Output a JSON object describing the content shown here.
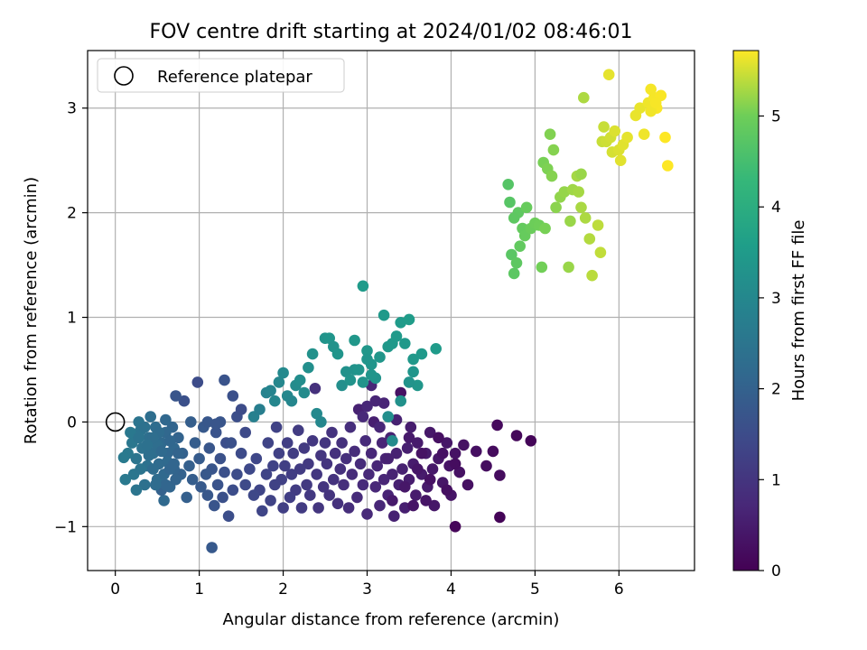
{
  "chart_data": {
    "type": "scatter",
    "title": "FOV centre drift starting at 2024/01/02 08:46:01",
    "xlabel": "Angular distance from reference (arcmin)",
    "ylabel": "Rotation from reference (arcmin)",
    "xlim": [
      -0.33,
      6.9
    ],
    "ylim": [
      -1.42,
      3.55
    ],
    "x_ticks": [
      0,
      1,
      2,
      3,
      4,
      5,
      6
    ],
    "y_ticks": [
      -1,
      0,
      1,
      2,
      3
    ],
    "x_tick_labels": [
      "0",
      "1",
      "2",
      "3",
      "4",
      "5",
      "6"
    ],
    "y_tick_labels": [
      "−1",
      "0",
      "1",
      "2",
      "3"
    ],
    "grid": true,
    "legend": {
      "placement": "top-left",
      "entries": [
        "Reference platepar"
      ]
    },
    "reference_point": {
      "x": 0,
      "y": 0
    },
    "colorbar": {
      "label": "Hours from first FF file",
      "colormap": "viridis",
      "range": [
        0,
        5.72
      ],
      "ticks": [
        0,
        1,
        2,
        3,
        4,
        5
      ],
      "tick_labels": [
        "0",
        "1",
        "2",
        "3",
        "4",
        "5"
      ]
    },
    "points": [
      [
        4.58,
        -0.91,
        0.05
      ],
      [
        4.05,
        -1.0,
        0.1
      ],
      [
        4.95,
        -0.18,
        0.08
      ],
      [
        4.78,
        -0.13,
        0.12
      ],
      [
        4.55,
        -0.03,
        0.15
      ],
      [
        4.58,
        -0.51,
        0.2
      ],
      [
        4.5,
        -0.28,
        0.18
      ],
      [
        4.42,
        -0.42,
        0.22
      ],
      [
        4.3,
        -0.28,
        0.25
      ],
      [
        4.2,
        -0.6,
        0.28
      ],
      [
        4.15,
        -0.22,
        0.3
      ],
      [
        4.1,
        -0.48,
        0.3
      ],
      [
        4.05,
        -0.3,
        0.32
      ],
      [
        4.0,
        -0.7,
        0.35
      ],
      [
        3.98,
        -0.42,
        0.35
      ],
      [
        3.95,
        -0.2,
        0.38
      ],
      [
        3.9,
        -0.58,
        0.38
      ],
      [
        3.85,
        -0.35,
        0.4
      ],
      [
        3.8,
        -0.8,
        0.4
      ],
      [
        3.78,
        -0.45,
        0.42
      ],
      [
        3.75,
        -0.1,
        0.42
      ],
      [
        3.72,
        -0.62,
        0.45
      ],
      [
        3.7,
        -0.3,
        0.45
      ],
      [
        3.65,
        -0.5,
        0.48
      ],
      [
        3.6,
        -0.2,
        0.48
      ],
      [
        3.58,
        -0.7,
        0.5
      ],
      [
        3.55,
        -0.4,
        0.5
      ],
      [
        3.52,
        -0.05,
        0.52
      ],
      [
        3.5,
        -0.55,
        0.52
      ],
      [
        3.48,
        -0.25,
        0.55
      ],
      [
        3.45,
        -0.82,
        0.55
      ],
      [
        3.42,
        -0.45,
        0.58
      ],
      [
        3.4,
        0.28,
        0.3
      ],
      [
        3.38,
        -0.6,
        0.58
      ],
      [
        3.35,
        -0.3,
        0.6
      ],
      [
        3.32,
        -0.9,
        0.6
      ],
      [
        3.3,
        -0.5,
        0.62
      ],
      [
        3.28,
        -0.15,
        0.62
      ],
      [
        3.25,
        -0.7,
        0.65
      ],
      [
        3.22,
        -0.35,
        0.65
      ],
      [
        3.2,
        -0.55,
        0.68
      ],
      [
        3.18,
        -0.2,
        0.68
      ],
      [
        3.15,
        -0.8,
        0.7
      ],
      [
        3.12,
        -0.42,
        0.7
      ],
      [
        3.1,
        -0.62,
        0.72
      ],
      [
        3.08,
        0.0,
        0.55
      ],
      [
        3.05,
        -0.3,
        0.72
      ],
      [
        3.02,
        -0.5,
        0.75
      ],
      [
        3.0,
        -0.88,
        0.75
      ],
      [
        2.98,
        -0.18,
        0.78
      ],
      [
        2.95,
        -0.6,
        0.78
      ],
      [
        2.92,
        -0.4,
        0.8
      ],
      [
        2.9,
        0.12,
        0.6
      ],
      [
        2.88,
        -0.72,
        0.8
      ],
      [
        2.85,
        -0.28,
        0.82
      ],
      [
        2.82,
        -0.5,
        0.82
      ],
      [
        2.8,
        -0.05,
        0.85
      ],
      [
        2.78,
        -0.82,
        0.85
      ],
      [
        2.75,
        -0.35,
        0.88
      ],
      [
        2.72,
        -0.6,
        0.88
      ],
      [
        2.7,
        -0.2,
        0.9
      ],
      [
        2.68,
        -0.45,
        0.9
      ],
      [
        2.65,
        -0.78,
        0.92
      ],
      [
        2.62,
        -0.3,
        0.92
      ],
      [
        2.6,
        -0.55,
        0.95
      ],
      [
        2.58,
        -0.1,
        0.95
      ],
      [
        2.55,
        -0.7,
        0.98
      ],
      [
        2.52,
        -0.4,
        0.98
      ],
      [
        2.5,
        -0.2,
        1.0
      ],
      [
        2.48,
        -0.62,
        1.0
      ],
      [
        2.45,
        -0.32,
        1.02
      ],
      [
        2.42,
        -0.82,
        1.02
      ],
      [
        2.4,
        -0.5,
        1.05
      ],
      [
        2.38,
        0.32,
        0.9
      ],
      [
        2.35,
        -0.18,
        1.05
      ],
      [
        2.32,
        -0.7,
        1.08
      ],
      [
        2.3,
        -0.4,
        1.08
      ],
      [
        2.28,
        -0.6,
        1.1
      ],
      [
        2.25,
        -0.25,
        1.1
      ],
      [
        2.22,
        -0.82,
        1.12
      ],
      [
        2.2,
        -0.45,
        1.12
      ],
      [
        2.18,
        -0.08,
        1.15
      ],
      [
        2.15,
        -0.65,
        1.15
      ],
      [
        2.12,
        -0.3,
        1.18
      ],
      [
        2.1,
        -0.5,
        1.18
      ],
      [
        2.08,
        -0.72,
        1.2
      ],
      [
        2.05,
        -0.2,
        1.2
      ],
      [
        2.02,
        -0.42,
        1.22
      ],
      [
        2.0,
        -0.82,
        1.22
      ],
      [
        1.98,
        -0.55,
        1.25
      ],
      [
        1.95,
        -0.3,
        1.25
      ],
      [
        1.92,
        -0.05,
        1.28
      ],
      [
        1.9,
        -0.6,
        1.28
      ],
      [
        1.88,
        -0.42,
        1.3
      ],
      [
        1.85,
        -0.75,
        1.3
      ],
      [
        1.82,
        -0.2,
        1.32
      ],
      [
        1.8,
        -0.5,
        1.32
      ],
      [
        1.75,
        -0.85,
        1.35
      ],
      [
        1.72,
        -0.65,
        1.35
      ],
      [
        1.68,
        -0.35,
        1.38
      ],
      [
        3.55,
        -0.8,
        0.35
      ],
      [
        3.65,
        -0.3,
        0.32
      ],
      [
        3.75,
        -0.55,
        0.3
      ],
      [
        3.85,
        -0.15,
        0.28
      ],
      [
        3.95,
        -0.65,
        0.25
      ],
      [
        4.05,
        -0.4,
        0.22
      ],
      [
        3.3,
        -0.75,
        0.45
      ],
      [
        3.45,
        -0.62,
        0.4
      ],
      [
        3.6,
        -0.45,
        0.38
      ],
      [
        3.7,
        -0.75,
        0.36
      ],
      [
        3.35,
        0.02,
        0.6
      ],
      [
        3.2,
        0.18,
        0.65
      ],
      [
        3.05,
        0.35,
        0.7
      ],
      [
        3.0,
        0.15,
        0.72
      ],
      [
        3.15,
        -0.05,
        0.7
      ],
      [
        2.95,
        0.05,
        0.75
      ],
      [
        3.1,
        0.2,
        0.68
      ],
      [
        3.25,
        -0.35,
        0.6
      ],
      [
        3.5,
        -0.15,
        0.45
      ],
      [
        3.9,
        -0.3,
        0.3
      ],
      [
        1.65,
        -0.7,
        1.4
      ],
      [
        1.6,
        -0.45,
        1.42
      ],
      [
        1.55,
        -0.6,
        1.45
      ],
      [
        1.5,
        -0.3,
        1.48
      ],
      [
        1.45,
        -0.5,
        1.5
      ],
      [
        1.4,
        -0.65,
        1.52
      ],
      [
        1.35,
        -0.9,
        1.55
      ],
      [
        1.32,
        -0.2,
        1.55
      ],
      [
        1.3,
        -0.48,
        1.58
      ],
      [
        1.28,
        -0.72,
        1.6
      ],
      [
        1.25,
        -0.35,
        1.62
      ],
      [
        1.22,
        -0.6,
        1.65
      ],
      [
        1.2,
        -0.1,
        1.65
      ],
      [
        1.18,
        -0.8,
        1.68
      ],
      [
        1.15,
        -0.45,
        1.7
      ],
      [
        1.12,
        -0.25,
        1.72
      ],
      [
        1.1,
        -0.7,
        1.75
      ],
      [
        1.08,
        -0.5,
        1.78
      ],
      [
        1.05,
        -0.05,
        1.8
      ],
      [
        1.02,
        -0.62,
        1.82
      ],
      [
        1.0,
        -0.35,
        1.85
      ],
      [
        0.98,
        0.38,
        1.5
      ],
      [
        0.95,
        -0.2,
        1.88
      ],
      [
        0.92,
        -0.55,
        1.9
      ],
      [
        0.9,
        0.0,
        1.92
      ],
      [
        0.88,
        -0.42,
        1.95
      ],
      [
        0.85,
        -0.72,
        1.95
      ],
      [
        0.82,
        0.2,
        1.6
      ],
      [
        0.8,
        -0.3,
        1.98
      ],
      [
        0.78,
        -0.5,
        2.0
      ],
      [
        0.75,
        -0.15,
        2.02
      ],
      [
        0.72,
        0.25,
        1.7
      ],
      [
        0.7,
        -0.45,
        2.05
      ],
      [
        0.68,
        -0.05,
        2.08
      ],
      [
        0.65,
        -0.62,
        2.1
      ],
      [
        0.62,
        -0.3,
        2.12
      ],
      [
        0.6,
        -0.1,
        2.15
      ],
      [
        0.58,
        -0.75,
        2.18
      ],
      [
        0.55,
        -0.2,
        2.2
      ],
      [
        0.52,
        -0.4,
        2.22
      ],
      [
        1.15,
        -1.2,
        1.8
      ],
      [
        1.45,
        0.05,
        1.55
      ],
      [
        1.5,
        0.12,
        1.5
      ],
      [
        1.4,
        0.25,
        1.6
      ],
      [
        1.55,
        -0.1,
        1.45
      ],
      [
        1.3,
        0.4,
        1.65
      ],
      [
        1.25,
        0.0,
        1.7
      ],
      [
        1.1,
        0.0,
        1.75
      ],
      [
        1.2,
        -0.02,
        1.7
      ],
      [
        1.38,
        -0.2,
        1.6
      ],
      [
        0.5,
        -0.55,
        2.25
      ],
      [
        0.48,
        -0.05,
        2.28
      ],
      [
        0.45,
        -0.3,
        2.3
      ],
      [
        0.42,
        0.05,
        2.32
      ],
      [
        0.4,
        -0.15,
        2.35
      ],
      [
        0.38,
        -0.42,
        2.38
      ],
      [
        0.35,
        -0.6,
        2.4
      ],
      [
        0.32,
        -0.25,
        2.42
      ],
      [
        0.3,
        -0.08,
        2.45
      ],
      [
        0.28,
        0.0,
        2.48
      ],
      [
        0.25,
        -0.35,
        2.5
      ],
      [
        0.22,
        -0.5,
        2.52
      ],
      [
        0.2,
        -0.2,
        2.55
      ],
      [
        0.18,
        -0.1,
        2.58
      ],
      [
        0.15,
        -0.3,
        2.6
      ],
      [
        0.12,
        -0.55,
        2.62
      ],
      [
        0.1,
        -0.34,
        2.65
      ],
      [
        0.55,
        -0.65,
        2.0
      ],
      [
        0.6,
        -0.6,
        2.1
      ],
      [
        0.5,
        -0.22,
        2.3
      ],
      [
        0.62,
        -0.38,
        2.2
      ],
      [
        0.7,
        -0.25,
        2.15
      ],
      [
        0.45,
        -0.45,
        2.25
      ],
      [
        0.35,
        -0.05,
        2.4
      ],
      [
        0.28,
        -0.15,
        2.45
      ],
      [
        0.65,
        -0.18,
        2.12
      ],
      [
        0.58,
        -0.5,
        2.18
      ],
      [
        0.4,
        -0.32,
        2.35
      ],
      [
        0.52,
        -0.1,
        2.25
      ],
      [
        0.3,
        -0.45,
        2.48
      ],
      [
        0.7,
        -0.4,
        2.1
      ],
      [
        0.75,
        -0.3,
        2.05
      ],
      [
        0.55,
        -0.28,
        2.2
      ],
      [
        0.45,
        -0.15,
        2.3
      ],
      [
        0.38,
        -0.22,
        2.38
      ],
      [
        0.6,
        0.02,
        2.15
      ],
      [
        0.65,
        -0.45,
        2.1
      ],
      [
        0.72,
        -0.55,
        2.05
      ],
      [
        0.48,
        -0.6,
        2.25
      ],
      [
        0.25,
        -0.65,
        2.5
      ],
      [
        1.65,
        0.05,
        2.8
      ],
      [
        1.72,
        0.12,
        2.75
      ],
      [
        1.8,
        0.28,
        2.85
      ],
      [
        1.85,
        0.3,
        2.9
      ],
      [
        1.9,
        0.2,
        2.95
      ],
      [
        1.95,
        0.38,
        3.0
      ],
      [
        2.0,
        0.47,
        3.05
      ],
      [
        2.05,
        0.25,
        3.0
      ],
      [
        2.1,
        0.2,
        2.95
      ],
      [
        2.15,
        0.35,
        3.1
      ],
      [
        2.2,
        0.4,
        3.15
      ],
      [
        2.25,
        0.28,
        3.1
      ],
      [
        2.3,
        0.52,
        3.2
      ],
      [
        2.35,
        0.65,
        3.25
      ],
      [
        2.4,
        0.08,
        3.05
      ],
      [
        2.45,
        0.0,
        3.0
      ],
      [
        2.5,
        0.8,
        3.3
      ],
      [
        2.55,
        0.8,
        3.35
      ],
      [
        2.6,
        0.72,
        3.3
      ],
      [
        2.65,
        0.65,
        3.35
      ],
      [
        2.7,
        0.35,
        3.2
      ],
      [
        2.75,
        0.48,
        3.25
      ],
      [
        2.8,
        0.4,
        3.3
      ],
      [
        2.85,
        0.5,
        3.28
      ],
      [
        2.9,
        0.5,
        3.32
      ],
      [
        2.95,
        1.3,
        3.5
      ],
      [
        3.0,
        0.68,
        3.4
      ],
      [
        3.05,
        0.55,
        3.35
      ],
      [
        3.1,
        0.42,
        3.3
      ],
      [
        3.15,
        0.62,
        3.38
      ],
      [
        3.2,
        1.02,
        3.45
      ],
      [
        3.25,
        0.72,
        3.42
      ],
      [
        3.3,
        0.75,
        3.45
      ],
      [
        3.35,
        0.82,
        3.48
      ],
      [
        3.4,
        0.95,
        3.5
      ],
      [
        3.45,
        0.75,
        3.45
      ],
      [
        3.5,
        0.98,
        3.52
      ],
      [
        3.55,
        0.6,
        3.42
      ],
      [
        3.6,
        0.35,
        3.38
      ],
      [
        3.65,
        0.65,
        3.45
      ],
      [
        2.85,
        0.78,
        3.4
      ],
      [
        3.05,
        0.45,
        3.35
      ],
      [
        3.25,
        0.05,
        3.2
      ],
      [
        3.4,
        0.2,
        3.25
      ],
      [
        3.5,
        0.38,
        3.3
      ],
      [
        3.55,
        0.48,
        3.35
      ],
      [
        3.82,
        0.7,
        3.5
      ],
      [
        3.3,
        -0.18,
        3.1
      ],
      [
        2.95,
        0.38,
        3.3
      ],
      [
        3.0,
        0.6,
        3.35
      ],
      [
        4.68,
        2.27,
        4.7
      ],
      [
        4.7,
        2.1,
        4.72
      ],
      [
        4.72,
        1.6,
        4.75
      ],
      [
        4.75,
        1.42,
        4.78
      ],
      [
        4.78,
        1.52,
        4.8
      ],
      [
        4.8,
        2.0,
        4.82
      ],
      [
        4.82,
        1.68,
        4.85
      ],
      [
        4.85,
        1.85,
        4.88
      ],
      [
        4.88,
        1.78,
        4.9
      ],
      [
        4.9,
        2.05,
        4.92
      ],
      [
        4.95,
        1.85,
        4.95
      ],
      [
        5.0,
        1.9,
        4.98
      ],
      [
        5.05,
        1.88,
        5.0
      ],
      [
        5.08,
        1.48,
        5.02
      ],
      [
        5.1,
        2.48,
        5.05
      ],
      [
        5.12,
        1.85,
        5.05
      ],
      [
        5.15,
        2.42,
        5.08
      ],
      [
        5.18,
        2.75,
        5.1
      ],
      [
        5.2,
        2.35,
        5.12
      ],
      [
        5.22,
        2.6,
        5.12
      ],
      [
        5.25,
        2.05,
        5.15
      ],
      [
        5.3,
        2.15,
        5.18
      ],
      [
        5.35,
        2.2,
        5.2
      ],
      [
        5.4,
        1.48,
        5.22
      ],
      [
        5.42,
        1.92,
        5.22
      ],
      [
        5.45,
        2.22,
        5.25
      ],
      [
        5.5,
        2.35,
        5.28
      ],
      [
        5.52,
        2.2,
        5.28
      ],
      [
        5.55,
        2.05,
        5.3
      ],
      [
        5.58,
        3.1,
        5.32
      ],
      [
        5.6,
        1.95,
        5.32
      ],
      [
        5.65,
        1.75,
        5.35
      ],
      [
        5.68,
        1.4,
        5.38
      ],
      [
        5.75,
        1.88,
        5.4
      ],
      [
        5.78,
        1.62,
        5.42
      ],
      [
        5.8,
        2.68,
        5.45
      ],
      [
        5.82,
        2.82,
        5.45
      ],
      [
        5.85,
        2.68,
        5.48
      ],
      [
        5.88,
        3.32,
        5.6
      ],
      [
        5.9,
        2.72,
        5.5
      ],
      [
        5.92,
        2.58,
        5.52
      ],
      [
        5.95,
        2.78,
        5.55
      ],
      [
        6.0,
        2.6,
        5.55
      ],
      [
        6.02,
        2.5,
        5.58
      ],
      [
        6.05,
        2.65,
        5.58
      ],
      [
        6.1,
        2.72,
        5.6
      ],
      [
        6.2,
        2.93,
        5.62
      ],
      [
        6.25,
        3.0,
        5.62
      ],
      [
        6.3,
        2.75,
        5.65
      ],
      [
        6.35,
        3.05,
        5.65
      ],
      [
        6.38,
        3.18,
        5.68
      ],
      [
        6.42,
        3.1,
        5.68
      ],
      [
        6.45,
        3.0,
        5.7
      ],
      [
        6.5,
        3.12,
        5.7
      ],
      [
        6.55,
        2.72,
        5.72
      ],
      [
        6.58,
        2.45,
        5.72
      ],
      [
        6.38,
        2.97,
        5.66
      ],
      [
        6.44,
        3.05,
        5.69
      ],
      [
        5.55,
        2.37,
        5.22
      ],
      [
        4.75,
        1.95,
        4.8
      ]
    ]
  }
}
